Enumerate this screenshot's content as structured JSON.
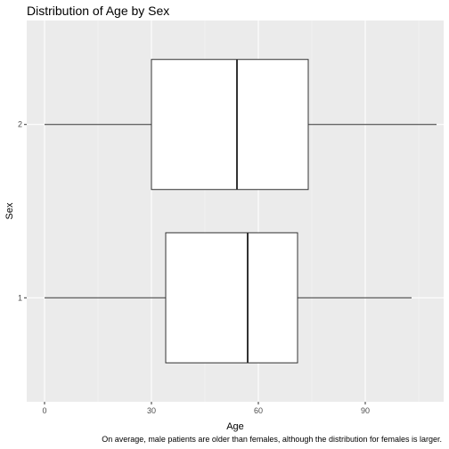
{
  "chart_data": {
    "type": "boxplot",
    "orientation": "horizontal",
    "title": "Distribution of Age by Sex",
    "xlabel": "Age",
    "ylabel": "Sex",
    "caption": "On average, male patients are older than females, although the distribution for females is larger.",
    "xlim": [
      -5,
      112
    ],
    "x_ticks": [
      0,
      30,
      60,
      90
    ],
    "x_minor_ticks": [
      15,
      45,
      75,
      105
    ],
    "categories": [
      "1",
      "2"
    ],
    "boxes": [
      {
        "category": "1",
        "min": 0,
        "q1": 34,
        "median": 57,
        "q3": 71,
        "max": 103
      },
      {
        "category": "2",
        "min": 0,
        "q1": 30,
        "median": 54,
        "q3": 74,
        "max": 110
      }
    ],
    "grid": true,
    "legend": "none",
    "colors": {
      "panel_background": "#ebebeb",
      "grid_major": "#ffffff",
      "grid_minor": "#f5f5f5",
      "box_fill": "#ffffff",
      "box_stroke": "#333333",
      "tick_text": "#4d4d4d"
    }
  }
}
